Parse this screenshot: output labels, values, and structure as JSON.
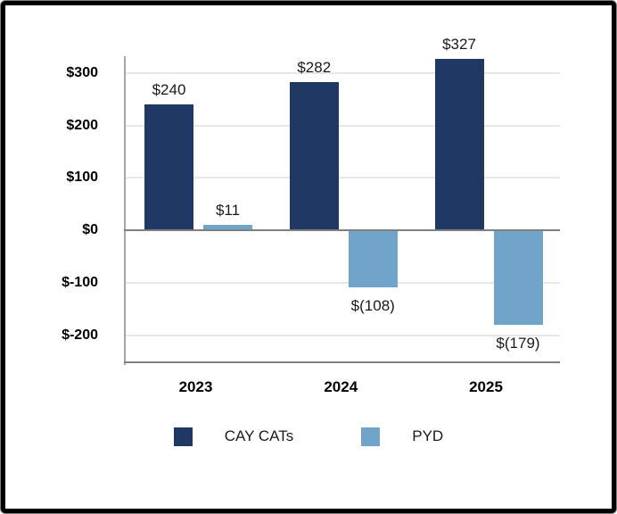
{
  "chart_data": {
    "type": "bar",
    "title": "",
    "xlabel": "",
    "ylabel": "",
    "categories": [
      "2023",
      "2024",
      "2025"
    ],
    "series": [
      {
        "name": "CAY CATs",
        "color": "#1F3864",
        "values": [
          240,
          282,
          327
        ],
        "data_labels": [
          "$240",
          "$282",
          "$327"
        ]
      },
      {
        "name": "PYD",
        "color": "#70A4C8",
        "values": [
          11,
          -108,
          -179
        ],
        "data_labels": [
          "$11",
          "$(108)",
          "$(179)"
        ]
      }
    ],
    "y_ticks": [
      {
        "value": 300,
        "label": "$300"
      },
      {
        "value": 200,
        "label": "$200"
      },
      {
        "value": 100,
        "label": "$100"
      },
      {
        "value": 0,
        "label": "$0"
      },
      {
        "value": -100,
        "label": "$-100"
      },
      {
        "value": -200,
        "label": "$-200"
      }
    ],
    "ylim": [
      -250,
      335
    ],
    "grid": true,
    "legend_position": "bottom",
    "legend": [
      "CAY CATs",
      "PYD"
    ]
  },
  "colors": {
    "cay_cats": "#1F3864",
    "pyd": "#70A4C8",
    "gridline": "#E8E8E8",
    "axis_line": "#A6A6A6",
    "zero_line": "#7F7F7F",
    "frame_border": "#000000",
    "frame_edge": "#7F7F7F",
    "label_text": "#1A1A1A",
    "tick_text": "#000000"
  }
}
